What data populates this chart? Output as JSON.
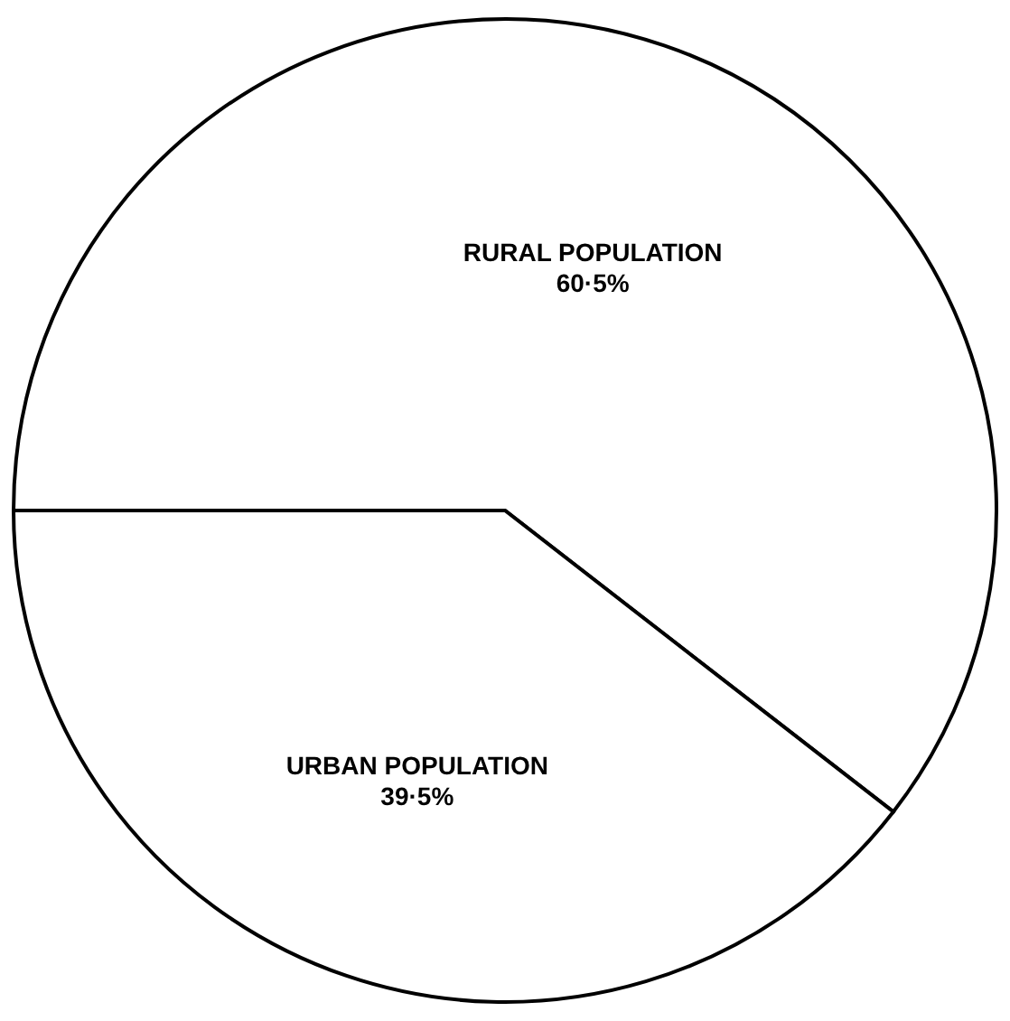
{
  "chart_data": {
    "type": "pie",
    "categories": [
      "RURAL POPULATION",
      "URBAN POPULATION"
    ],
    "values": [
      60.5,
      39.5
    ],
    "colors": [
      "#ffffff",
      "#ffffff"
    ],
    "value_labels": [
      "60·5%",
      "39·5%"
    ]
  }
}
